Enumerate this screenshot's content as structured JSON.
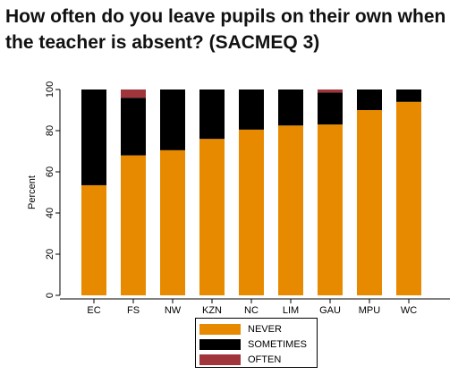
{
  "title": "How often do you leave pupils on their own when the teacher is absent? (SACMEQ 3)",
  "chart_data": {
    "type": "bar",
    "stacked": true,
    "ylabel": "Percent",
    "ylim": [
      0,
      100
    ],
    "yticks": [
      0,
      20,
      40,
      60,
      80,
      100
    ],
    "categories": [
      "EC",
      "FS",
      "NW",
      "KZN",
      "NC",
      "LIM",
      "GAU",
      "MPU",
      "WC"
    ],
    "series": [
      {
        "name": "NEVER",
        "color": "#E88A00",
        "values": [
          53.5,
          68,
          70.5,
          76,
          80.5,
          82.5,
          83,
          90,
          94
        ]
      },
      {
        "name": "SOMETIMES",
        "color": "#000000",
        "values": [
          46.5,
          28,
          29.5,
          24,
          19.5,
          17.5,
          15.5,
          10,
          6
        ]
      },
      {
        "name": "OFTEN",
        "color": "#A0353C",
        "values": [
          0,
          4,
          0,
          0,
          0,
          0,
          1.5,
          0,
          0
        ]
      }
    ],
    "legend_position": "bottom-center"
  }
}
